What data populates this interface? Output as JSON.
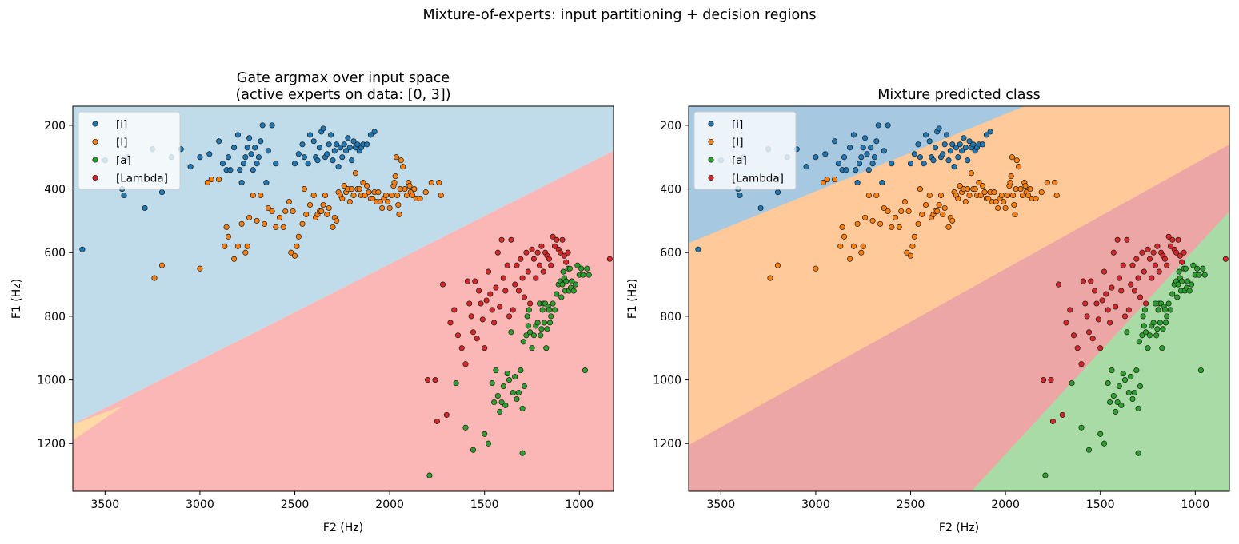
{
  "figure": {
    "suptitle": "Mixture-of-experts: input partitioning + decision regions"
  },
  "colors": {
    "i": "#1f77b4",
    "I": "#ff7f0e",
    "a": "#2ca02c",
    "Lambda": "#d62728",
    "gate_blue_region": "#c0dcea",
    "gate_orange_region": "#ffd9a6",
    "gate_red_region": "#fbb6b6",
    "mix_blue_region": "#a6c8e0",
    "mix_orange_region": "#ffc999",
    "mix_red_region": "#eda6a6",
    "mix_green_region": "#a9dba6"
  },
  "chart_data": [
    {
      "type": "scatter",
      "title": "Gate argmax over input space\n(active experts on data: [0, 3])",
      "xlabel": "F2 (Hz)",
      "ylabel": "F1 (Hz)",
      "xlim": [
        3670,
        820
      ],
      "ylim": [
        1350,
        140
      ],
      "xticks": [
        3500,
        3000,
        2500,
        2000,
        1500,
        1000
      ],
      "yticks": [
        200,
        400,
        600,
        800,
        1000,
        1200
      ],
      "legend": {
        "placement": "top-left",
        "entries": [
          "[i]",
          "[I]",
          "[a]",
          "[Lambda]"
        ]
      },
      "regions": [
        {
          "name": "gate-region-blue",
          "color": "#c0dcea"
        },
        {
          "name": "gate-region-orange",
          "color": "#ffd9a6"
        },
        {
          "name": "gate-region-red",
          "color": "#fbb6b6"
        }
      ],
      "boundaries": {
        "blue_red": [
          [
            3670,
            1140
          ],
          [
            820,
            280
          ]
        ],
        "orange_upper": [
          [
            3670,
            1140
          ],
          [
            3400,
            1080
          ]
        ],
        "orange_lower": [
          [
            3670,
            1190
          ],
          [
            3400,
            1080
          ]
        ]
      }
    },
    {
      "type": "scatter",
      "title": "Mixture predicted class",
      "xlabel": "F2 (Hz)",
      "ylabel": "F1 (Hz)",
      "xlim": [
        3670,
        820
      ],
      "ylim": [
        1350,
        140
      ],
      "xticks": [
        3500,
        3000,
        2500,
        2000,
        1500,
        1000
      ],
      "yticks": [
        200,
        400,
        600,
        800,
        1000,
        1200
      ],
      "legend": {
        "placement": "top-left",
        "entries": [
          "[i]",
          "[I]",
          "[a]",
          "[Lambda]"
        ]
      },
      "regions": [
        {
          "name": "mix-region-blue",
          "color": "#a6c8e0"
        },
        {
          "name": "mix-region-orange",
          "color": "#ffc999"
        },
        {
          "name": "mix-region-red",
          "color": "#eda6a6"
        },
        {
          "name": "mix-region-green",
          "color": "#a9dba6"
        }
      ],
      "boundaries": {
        "blue_orange": [
          [
            3670,
            570
          ],
          [
            1900,
            140
          ]
        ],
        "orange_red": [
          [
            3670,
            1205
          ],
          [
            820,
            260
          ]
        ],
        "red_green": [
          [
            2180,
            1350
          ],
          [
            820,
            470
          ]
        ]
      }
    }
  ],
  "scatter_points": {
    "i": [
      [
        3620,
        590
      ],
      [
        3500,
        310
      ],
      [
        3400,
        420
      ],
      [
        3410,
        400
      ],
      [
        3380,
        300
      ],
      [
        3290,
        460
      ],
      [
        3250,
        275
      ],
      [
        3200,
        410
      ],
      [
        3150,
        300
      ],
      [
        3100,
        275
      ],
      [
        3050,
        330
      ],
      [
        3000,
        300
      ],
      [
        2950,
        290
      ],
      [
        2900,
        250
      ],
      [
        2880,
        320
      ],
      [
        2860,
        340
      ],
      [
        2850,
        300
      ],
      [
        2840,
        340
      ],
      [
        2820,
        270
      ],
      [
        2800,
        230
      ],
      [
        2790,
        340
      ],
      [
        2780,
        380
      ],
      [
        2770,
        320
      ],
      [
        2760,
        300
      ],
      [
        2750,
        270
      ],
      [
        2740,
        240
      ],
      [
        2730,
        290
      ],
      [
        2720,
        340
      ],
      [
        2710,
        270
      ],
      [
        2700,
        320
      ],
      [
        2690,
        300
      ],
      [
        2680,
        250
      ],
      [
        2670,
        200
      ],
      [
        2650,
        380
      ],
      [
        2640,
        280
      ],
      [
        2620,
        200
      ],
      [
        2600,
        320
      ],
      [
        2500,
        320
      ],
      [
        2480,
        290
      ],
      [
        2460,
        260
      ],
      [
        2450,
        300
      ],
      [
        2430,
        320
      ],
      [
        2420,
        230
      ],
      [
        2400,
        250
      ],
      [
        2390,
        300
      ],
      [
        2380,
        310
      ],
      [
        2370,
        270
      ],
      [
        2360,
        220
      ],
      [
        2350,
        210
      ],
      [
        2340,
        300
      ],
      [
        2330,
        290
      ],
      [
        2320,
        260
      ],
      [
        2310,
        230
      ],
      [
        2300,
        310
      ],
      [
        2290,
        280
      ],
      [
        2280,
        260
      ],
      [
        2270,
        330
      ],
      [
        2260,
        270
      ],
      [
        2250,
        300
      ],
      [
        2240,
        260
      ],
      [
        2230,
        280
      ],
      [
        2220,
        240
      ],
      [
        2210,
        270
      ],
      [
        2200,
        310
      ],
      [
        2190,
        250
      ],
      [
        2180,
        270
      ],
      [
        2170,
        260
      ],
      [
        2160,
        280
      ],
      [
        2150,
        270
      ],
      [
        2140,
        260
      ],
      [
        2120,
        260
      ],
      [
        2100,
        230
      ],
      [
        2080,
        220
      ]
    ],
    "I": [
      [
        3240,
        680
      ],
      [
        3200,
        640
      ],
      [
        3000,
        650
      ],
      [
        2960,
        380
      ],
      [
        2940,
        370
      ],
      [
        2900,
        370
      ],
      [
        2870,
        580
      ],
      [
        2860,
        520
      ],
      [
        2850,
        550
      ],
      [
        2820,
        620
      ],
      [
        2800,
        580
      ],
      [
        2780,
        510
      ],
      [
        2760,
        600
      ],
      [
        2750,
        580
      ],
      [
        2740,
        490
      ],
      [
        2720,
        420
      ],
      [
        2700,
        500
      ],
      [
        2680,
        420
      ],
      [
        2660,
        510
      ],
      [
        2640,
        460
      ],
      [
        2620,
        470
      ],
      [
        2600,
        520
      ],
      [
        2580,
        490
      ],
      [
        2560,
        520
      ],
      [
        2550,
        470
      ],
      [
        2530,
        440
      ],
      [
        2520,
        600
      ],
      [
        2510,
        470
      ],
      [
        2500,
        610
      ],
      [
        2490,
        580
      ],
      [
        2480,
        550
      ],
      [
        2460,
        510
      ],
      [
        2450,
        400
      ],
      [
        2440,
        480
      ],
      [
        2420,
        450
      ],
      [
        2400,
        420
      ],
      [
        2390,
        490
      ],
      [
        2380,
        480
      ],
      [
        2370,
        470
      ],
      [
        2360,
        470
      ],
      [
        2350,
        450
      ],
      [
        2340,
        420
      ],
      [
        2330,
        480
      ],
      [
        2320,
        460
      ],
      [
        2300,
        520
      ],
      [
        2290,
        490
      ],
      [
        2280,
        500
      ],
      [
        2270,
        410
      ],
      [
        2260,
        420
      ],
      [
        2250,
        430
      ],
      [
        2240,
        390
      ],
      [
        2230,
        410
      ],
      [
        2220,
        400
      ],
      [
        2210,
        440
      ],
      [
        2200,
        400
      ],
      [
        2190,
        420
      ],
      [
        2180,
        350
      ],
      [
        2170,
        400
      ],
      [
        2160,
        400
      ],
      [
        2150,
        420
      ],
      [
        2140,
        380
      ],
      [
        2130,
        420
      ],
      [
        2120,
        390
      ],
      [
        2110,
        410
      ],
      [
        2100,
        430
      ],
      [
        2090,
        430
      ],
      [
        2080,
        410
      ],
      [
        2070,
        440
      ],
      [
        2060,
        410
      ],
      [
        2050,
        440
      ],
      [
        2040,
        460
      ],
      [
        2030,
        430
      ],
      [
        2020,
        420
      ],
      [
        2010,
        440
      ],
      [
        2000,
        460
      ],
      [
        1990,
        420
      ],
      [
        1980,
        390
      ],
      [
        1975,
        380
      ],
      [
        1970,
        360
      ],
      [
        1965,
        300
      ],
      [
        1960,
        420
      ],
      [
        1955,
        450
      ],
      [
        1950,
        480
      ],
      [
        1945,
        400
      ],
      [
        1940,
        310
      ],
      [
        1930,
        330
      ],
      [
        1920,
        400
      ],
      [
        1910,
        420
      ],
      [
        1900,
        380
      ],
      [
        1895,
        390
      ],
      [
        1890,
        410
      ],
      [
        1880,
        420
      ],
      [
        1870,
        400
      ],
      [
        1860,
        430
      ],
      [
        1840,
        430
      ],
      [
        1810,
        410
      ],
      [
        1780,
        380
      ],
      [
        1740,
        380
      ],
      [
        1730,
        420
      ]
    ],
    "a": [
      [
        1790,
        1300
      ],
      [
        1650,
        1010
      ],
      [
        1600,
        1150
      ],
      [
        1560,
        1220
      ],
      [
        1500,
        1170
      ],
      [
        1480,
        1200
      ],
      [
        1460,
        1010
      ],
      [
        1450,
        1070
      ],
      [
        1440,
        970
      ],
      [
        1430,
        1050
      ],
      [
        1420,
        1100
      ],
      [
        1410,
        1070
      ],
      [
        1400,
        1020
      ],
      [
        1390,
        1080
      ],
      [
        1380,
        980
      ],
      [
        1370,
        1000
      ],
      [
        1360,
        850
      ],
      [
        1350,
        1040
      ],
      [
        1340,
        990
      ],
      [
        1330,
        1060
      ],
      [
        1320,
        1040
      ],
      [
        1310,
        970
      ],
      [
        1300,
        1230
      ],
      [
        1300,
        1090
      ],
      [
        1295,
        880
      ],
      [
        1290,
        1020
      ],
      [
        1280,
        860
      ],
      [
        1275,
        800
      ],
      [
        1270,
        830
      ],
      [
        1265,
        780
      ],
      [
        1260,
        850
      ],
      [
        1250,
        900
      ],
      [
        1240,
        860
      ],
      [
        1230,
        830
      ],
      [
        1220,
        820
      ],
      [
        1210,
        760
      ],
      [
        1205,
        860
      ],
      [
        1200,
        840
      ],
      [
        1195,
        780
      ],
      [
        1190,
        760
      ],
      [
        1185,
        820
      ],
      [
        1180,
        760
      ],
      [
        1175,
        900
      ],
      [
        1170,
        840
      ],
      [
        1165,
        770
      ],
      [
        1160,
        780
      ],
      [
        1155,
        820
      ],
      [
        1150,
        800
      ],
      [
        1140,
        760
      ],
      [
        1130,
        780
      ],
      [
        1120,
        730
      ],
      [
        1110,
        700
      ],
      [
        1100,
        690
      ],
      [
        1095,
        740
      ],
      [
        1090,
        700
      ],
      [
        1085,
        660
      ],
      [
        1080,
        680
      ],
      [
        1075,
        720
      ],
      [
        1070,
        690
      ],
      [
        1060,
        650
      ],
      [
        1055,
        720
      ],
      [
        1050,
        650
      ],
      [
        1045,
        710
      ],
      [
        1040,
        690
      ],
      [
        1030,
        720
      ],
      [
        1020,
        700
      ],
      [
        1010,
        640
      ],
      [
        1000,
        670
      ],
      [
        990,
        650
      ],
      [
        980,
        670
      ],
      [
        970,
        970
      ],
      [
        960,
        650
      ],
      [
        950,
        670
      ]
    ],
    "Lambda": [
      [
        1800,
        1000
      ],
      [
        1760,
        1000
      ],
      [
        1750,
        1130
      ],
      [
        1720,
        700
      ],
      [
        1700,
        1110
      ],
      [
        1680,
        820
      ],
      [
        1660,
        780
      ],
      [
        1640,
        860
      ],
      [
        1620,
        900
      ],
      [
        1600,
        950
      ],
      [
        1590,
        690
      ],
      [
        1580,
        760
      ],
      [
        1570,
        800
      ],
      [
        1560,
        850
      ],
      [
        1550,
        690
      ],
      [
        1540,
        870
      ],
      [
        1530,
        720
      ],
      [
        1520,
        760
      ],
      [
        1510,
        810
      ],
      [
        1500,
        900
      ],
      [
        1490,
        750
      ],
      [
        1480,
        660
      ],
      [
        1470,
        730
      ],
      [
        1460,
        780
      ],
      [
        1450,
        820
      ],
      [
        1440,
        710
      ],
      [
        1430,
        600
      ],
      [
        1420,
        770
      ],
      [
        1410,
        560
      ],
      [
        1400,
        680
      ],
      [
        1390,
        720
      ],
      [
        1380,
        640
      ],
      [
        1370,
        800
      ],
      [
        1360,
        560
      ],
      [
        1350,
        780
      ],
      [
        1340,
        700
      ],
      [
        1330,
        640
      ],
      [
        1320,
        720
      ],
      [
        1310,
        620
      ],
      [
        1300,
        680
      ],
      [
        1290,
        740
      ],
      [
        1280,
        600
      ],
      [
        1270,
        660
      ],
      [
        1260,
        760
      ],
      [
        1250,
        590
      ],
      [
        1240,
        620
      ],
      [
        1230,
        680
      ],
      [
        1220,
        600
      ],
      [
        1210,
        640
      ],
      [
        1200,
        580
      ],
      [
        1190,
        660
      ],
      [
        1180,
        600
      ],
      [
        1170,
        610
      ],
      [
        1160,
        620
      ],
      [
        1150,
        640
      ],
      [
        1140,
        550
      ],
      [
        1130,
        580
      ],
      [
        1120,
        560
      ],
      [
        1110,
        590
      ],
      [
        1100,
        600
      ],
      [
        1090,
        560
      ],
      [
        1080,
        610
      ],
      [
        1070,
        630
      ],
      [
        1060,
        600
      ],
      [
        840,
        620
      ]
    ]
  }
}
